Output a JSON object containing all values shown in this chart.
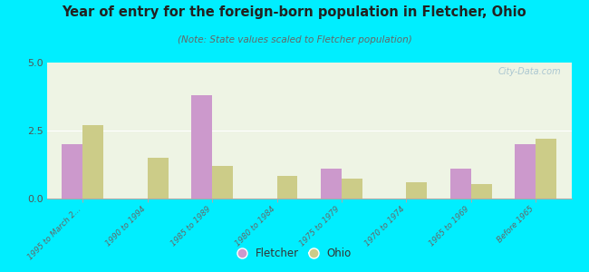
{
  "title": "Year of entry for the foreign-born population in Fletcher, Ohio",
  "subtitle": "(Note: State values scaled to Fletcher population)",
  "categories": [
    "1995 to March 2...",
    "1990 to 1994",
    "1985 to 1989",
    "1980 to 1984",
    "1975 to 1979",
    "1970 to 1974",
    "1965 to 1969",
    "Before 1965"
  ],
  "fletcher_values": [
    2.0,
    0.0,
    3.8,
    0.0,
    1.1,
    0.0,
    1.1,
    2.0
  ],
  "ohio_values": [
    2.7,
    1.5,
    1.2,
    0.85,
    0.75,
    0.6,
    0.55,
    2.2
  ],
  "ylim": [
    0,
    5
  ],
  "yticks": [
    0,
    2.5,
    5
  ],
  "fletcher_color": "#cc99cc",
  "ohio_color": "#cccc88",
  "background_color": "#00eeff",
  "plot_bg_color": "#eef4e4",
  "watermark": "City-Data.com",
  "bar_width": 0.32,
  "legend_fletcher": "Fletcher",
  "legend_ohio": "Ohio"
}
